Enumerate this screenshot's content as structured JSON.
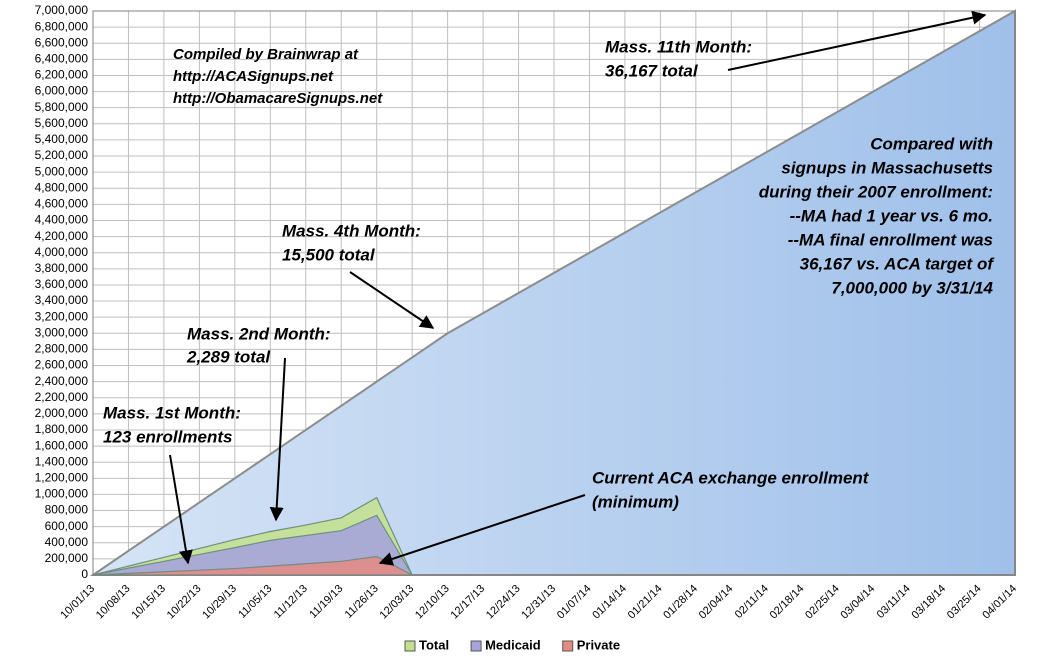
{
  "chart_data": {
    "type": "area",
    "categories": [
      "10/01/13",
      "10/08/13",
      "10/15/13",
      "10/22/13",
      "10/29/13",
      "11/05/13",
      "11/12/13",
      "11/19/13",
      "11/26/13",
      "12/03/13",
      "12/10/13",
      "12/17/13",
      "12/24/13",
      "12/31/13",
      "01/07/14",
      "01/14/14",
      "01/21/14",
      "01/28/14",
      "02/04/14",
      "02/11/14",
      "02/18/14",
      "02/25/14",
      "03/04/14",
      "03/11/14",
      "03/18/14",
      "03/25/14",
      "04/01/14"
    ],
    "series": [
      {
        "color": "#b3cdef",
        "values": [
          0,
          300000,
          600000,
          900000,
          1200000,
          1500000,
          1800000,
          2100000,
          2400000,
          2700000,
          3000000,
          3250000,
          3500000,
          3750000,
          4000000,
          4250000,
          4500000,
          4750000,
          5000000,
          5250000,
          5500000,
          5750000,
          6000000,
          6250000,
          6500000,
          6750000,
          7000000
        ]
      },
      {
        "name": "Total",
        "color": "#c4e08e",
        "values": [
          0,
          110000,
          220000,
          330000,
          440000,
          540000,
          620000,
          710000,
          960000,
          0,
          null,
          null,
          null,
          null,
          null,
          null,
          null,
          null,
          null,
          null,
          null,
          null,
          null,
          null,
          null,
          null,
          null
        ]
      },
      {
        "name": "Medicaid",
        "color": "#a6a3dc",
        "values": [
          0,
          85000,
          170000,
          255000,
          340000,
          430000,
          490000,
          550000,
          740000,
          0,
          null,
          null,
          null,
          null,
          null,
          null,
          null,
          null,
          null,
          null,
          null,
          null,
          null,
          null,
          null,
          null,
          null
        ]
      },
      {
        "name": "Private",
        "color": "#e48a85",
        "values": [
          0,
          20000,
          40000,
          60000,
          80000,
          110000,
          140000,
          170000,
          230000,
          0,
          null,
          null,
          null,
          null,
          null,
          null,
          null,
          null,
          null,
          null,
          null,
          null,
          null,
          null,
          null,
          null,
          null
        ]
      }
    ],
    "ylim": [
      0,
      7000000
    ],
    "yticks": [
      0,
      {
        "value": 200000,
        "label": "200,000"
      },
      {
        "value": 400000,
        "label": "400,000"
      },
      {
        "value": 600000,
        "label": "600,000"
      },
      {
        "value": 800000,
        "label": "800,000"
      },
      {
        "value": 1000000,
        "label": "1,000,000"
      },
      {
        "value": 1200000,
        "label": "1,200,000"
      },
      {
        "value": 1400000,
        "label": "1,400,000"
      },
      {
        "value": 1600000,
        "label": "1,600,000"
      },
      {
        "value": 1800000,
        "label": "1,800,000"
      },
      {
        "value": 2000000,
        "label": "2,000,000"
      },
      {
        "value": 2200000,
        "label": "2,200,000"
      },
      {
        "value": 2400000,
        "label": "2,400,000"
      },
      {
        "value": 2600000,
        "label": "2,600,000"
      },
      {
        "value": 2800000,
        "label": "2,800,000"
      },
      {
        "value": 3000000,
        "label": "3,000,000"
      },
      {
        "value": 3200000,
        "label": "3,200,000"
      },
      {
        "value": 3400000,
        "label": "3,400,000"
      },
      {
        "value": 3600000,
        "label": "3,600,000"
      },
      {
        "value": 3800000,
        "label": "3,800,000"
      },
      {
        "value": 4000000,
        "label": "4,000,000"
      },
      {
        "value": 4200000,
        "label": "4,200,000"
      },
      {
        "value": 4400000,
        "label": "4,400,000"
      },
      {
        "value": 4600000,
        "label": "4,600,000"
      },
      {
        "value": 4800000,
        "label": "4,800,000"
      },
      {
        "value": 5000000,
        "label": "5,000,000"
      },
      {
        "value": 5200000,
        "label": "5,200,000"
      },
      {
        "value": 5400000,
        "label": "5,400,000"
      },
      {
        "value": 5600000,
        "label": "5,600,000"
      },
      {
        "value": 5800000,
        "label": "5,800,000"
      },
      {
        "value": 6000000,
        "label": "6,000,000"
      },
      {
        "value": 6200000,
        "label": "6,200,000"
      },
      {
        "value": 6400000,
        "label": "6,400,000"
      },
      {
        "value": 6600000,
        "label": "6,600,000"
      },
      {
        "value": 6800000,
        "label": "6,800,000"
      },
      {
        "value": 7000000,
        "label": "7,000,000"
      }
    ],
    "grid": true,
    "legend": "bottom",
    "annotations": {
      "credit": [
        "Compiled by Brainwrap at",
        "http://ACASignups.net",
        "http://ObamacareSignups.net"
      ],
      "month11": [
        "Mass. 11th Month:",
        "36,167 total"
      ],
      "compared": [
        "Compared with",
        "signups in Massachusetts",
        "during their 2007 enrollment:",
        "--MA had 1 year vs. 6 mo.",
        "--MA final enrollment was",
        "36,167 vs. ACA target of",
        "7,000,000 by 3/31/14"
      ],
      "month4": [
        "Mass. 4th Month:",
        "15,500 total"
      ],
      "month2": [
        "Mass. 2nd Month:",
        "2,289 total"
      ],
      "month1": [
        "Mass. 1st Month:",
        "123 enrollments"
      ],
      "current": [
        "Current ACA exchange enrollment",
        "(minimum)"
      ]
    }
  }
}
